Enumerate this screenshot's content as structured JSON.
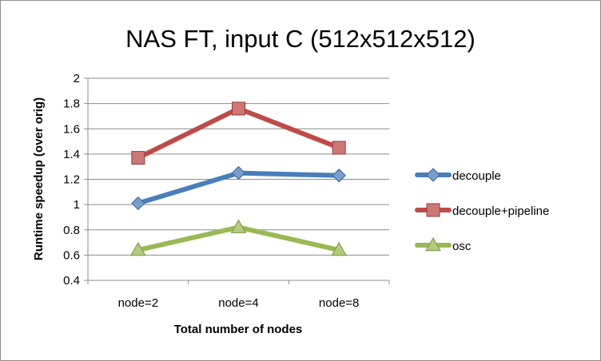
{
  "chart_data": {
    "type": "line",
    "title": "NAS FT, input C (512x512x512)",
    "xlabel": "Total number of nodes",
    "ylabel": "Runtime speedup (over orig)",
    "categories": [
      "node=2",
      "node=4",
      "node=8"
    ],
    "ylim": [
      0.4,
      2
    ],
    "yticks": [
      "0.4",
      "0.6",
      "0.8",
      "1",
      "1.2",
      "1.4",
      "1.6",
      "1.8",
      "2"
    ],
    "grid": true,
    "legend_position": "right",
    "series": [
      {
        "name": "decouple",
        "values": [
          1.01,
          1.25,
          1.23
        ],
        "color": "#4a7ebb",
        "marker": "diamond"
      },
      {
        "name": "decouple+pipeline",
        "values": [
          1.37,
          1.76,
          1.45
        ],
        "color": "#be4b48",
        "marker": "square"
      },
      {
        "name": "osc",
        "values": [
          0.64,
          0.82,
          0.64
        ],
        "color": "#98b954",
        "marker": "triangle"
      }
    ]
  }
}
